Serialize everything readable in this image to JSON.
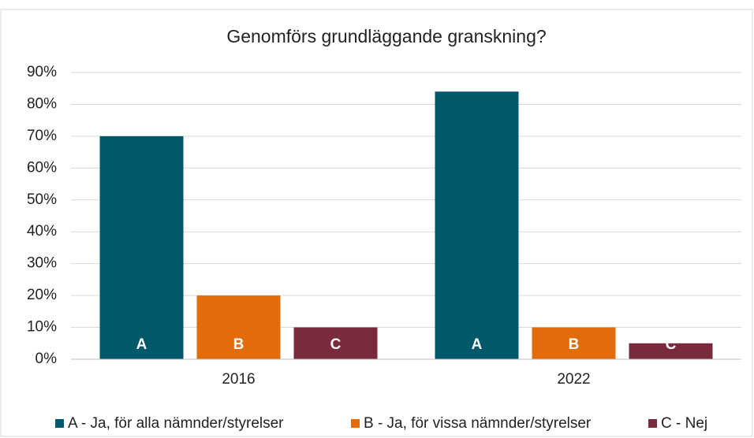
{
  "chart_data": {
    "type": "bar",
    "title": "Genomförs grundläggande  granskning?",
    "categories": [
      "2016",
      "2022"
    ],
    "series": [
      {
        "name": "A - Ja, för alla nämnder/styrelser",
        "label": "A",
        "color": "#00586a",
        "values": [
          70,
          84
        ]
      },
      {
        "name": "B - Ja, för vissa nämnder/styrelser",
        "label": "B",
        "color": "#e36c0a",
        "values": [
          20,
          10
        ]
      },
      {
        "name": "C - Nej",
        "label": "C",
        "color": "#7b2a3e",
        "values": [
          10,
          5
        ]
      }
    ],
    "ylim": [
      0,
      90
    ],
    "yticks": [
      {
        "value": 0,
        "label": "0%"
      },
      {
        "value": 10,
        "label": "10%"
      },
      {
        "value": 20,
        "label": "20%"
      },
      {
        "value": 30,
        "label": "30%"
      },
      {
        "value": 40,
        "label": "40%"
      },
      {
        "value": 50,
        "label": "50%"
      },
      {
        "value": 60,
        "label": "60%"
      },
      {
        "value": 70,
        "label": "70%"
      },
      {
        "value": 80,
        "label": "80%"
      },
      {
        "value": 90,
        "label": "90%"
      }
    ],
    "grid": true,
    "legend": "bottom"
  }
}
